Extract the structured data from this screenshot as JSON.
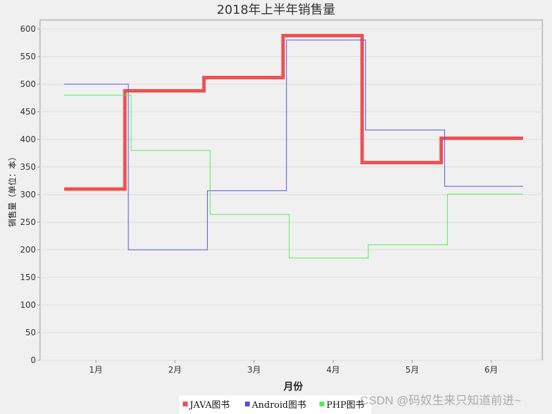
{
  "chart_data": {
    "type": "line",
    "style": "step",
    "title": "2018年上半年销售量",
    "xlabel": "月份",
    "ylabel": "销售量（单位：本）",
    "categories": [
      "1月",
      "2月",
      "3月",
      "4月",
      "5月",
      "6月"
    ],
    "ylim": [
      0,
      620
    ],
    "yticks": [
      0,
      50,
      100,
      150,
      200,
      250,
      300,
      350,
      400,
      450,
      500,
      550,
      600
    ],
    "grid": true,
    "legend": "bottom",
    "series": [
      {
        "name": "JAVA图书",
        "color": "#f05050",
        "values": [
          310,
          488,
          512,
          588,
          358,
          402
        ]
      },
      {
        "name": "Android图书",
        "color": "#5050e8",
        "values": [
          500,
          200,
          307,
          580,
          417,
          315
        ]
      },
      {
        "name": "PHP图书",
        "color": "#50f050",
        "values": [
          480,
          380,
          264,
          185,
          209,
          301
        ]
      }
    ]
  },
  "watermark": "CSDN @码奴生来只知道前进~"
}
